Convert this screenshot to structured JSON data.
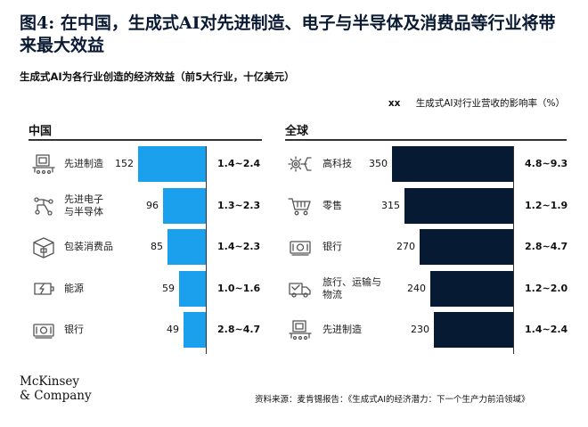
{
  "title": "图4: 在中国，生成式AI对先进制造、电子与半导体及消费品等行业将带来最大效益",
  "subtitle": "生成式AI为各行业创造的经济效益（前5大行业，十亿美元）",
  "legend": {
    "marker": "xx",
    "text": "生成式AI对行业营收的影响率（%）"
  },
  "logo": {
    "line1": "McKinsey",
    "line2": "& Company"
  },
  "source": "资料来源：麦肯锡报告：《生成式AI的经济潜力：下一个生产力前沿领域》",
  "colors": {
    "china_bar": "#1aa0ec",
    "global_bar": "#061a33",
    "icon": "#555555"
  },
  "chart_data": [
    {
      "type": "bar",
      "orientation": "horizontal",
      "title": "中国",
      "categories": [
        "先进制造",
        "先进电子与半导体",
        "包装消费品",
        "能源",
        "银行"
      ],
      "category_lines": [
        [
          "先进制造"
        ],
        [
          "先进电子",
          "与半导体"
        ],
        [
          "包装消费品"
        ],
        [
          "能源"
        ],
        [
          "银行"
        ]
      ],
      "icons": [
        "manufacturing-icon",
        "circuit-icon",
        "package-icon",
        "energy-icon",
        "bank-icon"
      ],
      "values": [
        152,
        96,
        85,
        59,
        49
      ],
      "ranges": [
        "1.4~2.4",
        "1.3~2.3",
        "1.4~2.3",
        "1.0~1.6",
        "2.8~4.7"
      ],
      "xlim": [
        0,
        350
      ]
    },
    {
      "type": "bar",
      "orientation": "horizontal",
      "title": "全球",
      "categories": [
        "高科技",
        "零售",
        "银行",
        "旅行、运输与物流",
        "先进制造"
      ],
      "category_lines": [
        [
          "高科技"
        ],
        [
          "零售"
        ],
        [
          "银行"
        ],
        [
          "旅行、运输与",
          "物流"
        ],
        [
          "先进制造"
        ]
      ],
      "icons": [
        "hightech-icon",
        "cart-icon",
        "bank-icon",
        "truck-icon",
        "manufacturing-icon"
      ],
      "values": [
        350,
        315,
        270,
        240,
        230
      ],
      "ranges": [
        "4.8~9.3",
        "1.2~1.9",
        "2.8~4.7",
        "1.2~2.0",
        "1.4~2.4"
      ],
      "xlim": [
        0,
        350
      ]
    }
  ]
}
